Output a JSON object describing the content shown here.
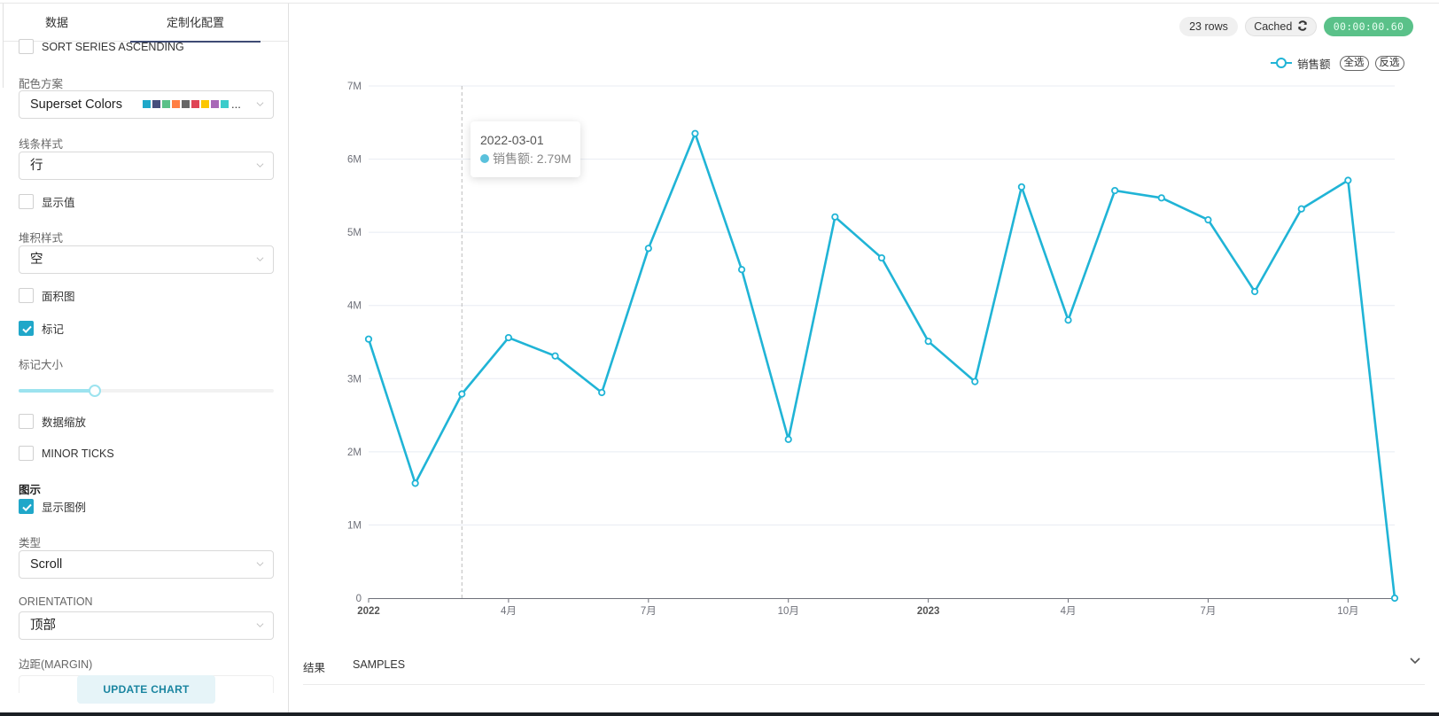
{
  "left_panel": {
    "tabs": [
      {
        "label": "数据",
        "active": false
      },
      {
        "label": "定制化配置",
        "active": true
      }
    ],
    "controls": {
      "sort_series": {
        "label": "SORT SERIES ASCENDING",
        "checked": false
      },
      "color_scheme": {
        "label": "配色方案",
        "value": "Superset Colors",
        "swatches": [
          "#1FA8C9",
          "#454E7C",
          "#5AC189",
          "#FF7F44",
          "#666666",
          "#E04355",
          "#FCC700",
          "#A868B7",
          "#3CCCCB"
        ],
        "ellipsis": "..."
      },
      "line_style": {
        "label": "线条样式",
        "value": "行"
      },
      "show_values": {
        "label": "显示值",
        "checked": false
      },
      "stack_style": {
        "label": "堆积样式",
        "value": "空"
      },
      "area_chart": {
        "label": "面积图",
        "checked": false
      },
      "markers": {
        "label": "标记",
        "checked": true
      },
      "marker_size": {
        "label": "标记大小",
        "percent": 30
      },
      "data_zoom": {
        "label": "数据缩放",
        "checked": false
      },
      "minor_ticks": {
        "label": "MINOR TICKS",
        "checked": false
      },
      "legend_section": {
        "label": "图示"
      },
      "show_legend": {
        "label": "显示图例",
        "checked": true
      },
      "legend_type": {
        "label": "类型",
        "value": "Scroll"
      },
      "orientation": {
        "label": "ORIENTATION",
        "value": "顶部"
      },
      "margin": {
        "label": "边距(MARGIN)"
      }
    },
    "update_button": "UPDATE CHART"
  },
  "header": {
    "rows_badge": "23 rows",
    "cached_badge": "Cached",
    "timer": "00:00:00.60",
    "colors": {
      "timer_bg": "#5AC189",
      "accent": "#20A7C9"
    }
  },
  "legend": {
    "series_name": "销售额",
    "select_all": "全选",
    "invert_select": "反选"
  },
  "tooltip": {
    "date": "2022-03-01",
    "series": "销售额",
    "value_text": "销售额: 2.79M"
  },
  "results": {
    "tabs": [
      "结果",
      "SAMPLES"
    ]
  },
  "chart_data": {
    "type": "line",
    "title": "",
    "xlabel": "",
    "ylabel": "",
    "series": [
      {
        "name": "销售额",
        "color": "#20B4D6",
        "x": [
          "2022-01",
          "2022-02",
          "2022-03",
          "2022-04",
          "2022-05",
          "2022-06",
          "2022-07",
          "2022-08",
          "2022-09",
          "2022-10",
          "2022-11",
          "2022-12",
          "2023-01",
          "2023-02",
          "2023-03",
          "2023-04",
          "2023-05",
          "2023-06",
          "2023-07",
          "2023-08",
          "2023-09",
          "2023-10",
          "2023-11"
        ],
        "values": [
          3.54,
          1.57,
          2.79,
          3.56,
          3.31,
          2.81,
          4.78,
          6.35,
          4.49,
          2.17,
          5.21,
          4.65,
          3.51,
          2.96,
          5.62,
          3.8,
          5.57,
          5.47,
          5.17,
          4.19,
          5.32,
          5.71,
          0.0
        ]
      }
    ],
    "units": "M",
    "ylim": [
      0,
      7
    ],
    "y_ticks": [
      "0",
      "1M",
      "2M",
      "3M",
      "4M",
      "5M",
      "6M",
      "7M"
    ],
    "x_ticks": [
      {
        "label": "2022",
        "index": 0,
        "bold": true
      },
      {
        "label": "4月",
        "index": 3,
        "bold": false
      },
      {
        "label": "7月",
        "index": 6,
        "bold": false
      },
      {
        "label": "10月",
        "index": 9,
        "bold": false
      },
      {
        "label": "2023",
        "index": 12,
        "bold": true
      },
      {
        "label": "4月",
        "index": 15,
        "bold": false
      },
      {
        "label": "7月",
        "index": 18,
        "bold": false
      },
      {
        "label": "10月",
        "index": 21,
        "bold": false
      }
    ],
    "grid": true,
    "markers": true,
    "legend_position": "top-right",
    "hover_index": 2
  }
}
